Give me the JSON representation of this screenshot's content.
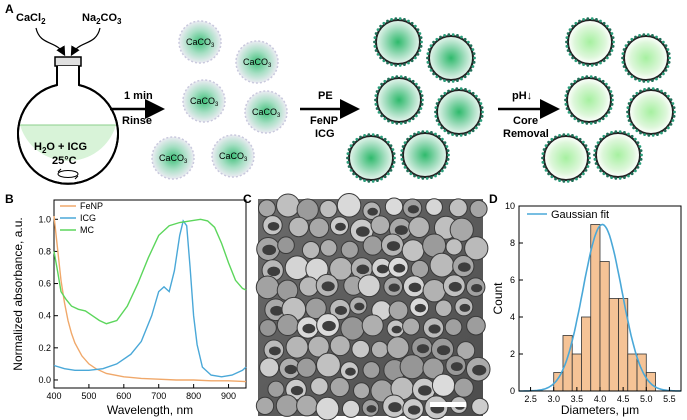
{
  "panels": {
    "A": "A",
    "B": "B",
    "C": "C",
    "D": "D"
  },
  "schematic": {
    "reagent_left": "CaCl",
    "reagent_left_sub": "2",
    "reagent_right": "Na",
    "reagent_right_sub1": "2",
    "reagent_right_mid": "CO",
    "reagent_right_sub2": "3",
    "flask_line1_a": "H",
    "flask_line1_sub": "2",
    "flask_line1_b": "O + ICG",
    "flask_line2": "25°C",
    "particle_label": "CaCO",
    "particle_label_sub": "3",
    "step1_top": "1 min",
    "step1_bottom": "Rinse",
    "step2_top": "PE",
    "step2_mid": "FeNP",
    "step2_bottom": "ICG",
    "step3_top": "pH↓",
    "step3_mid": "Core",
    "step3_bottom": "Removal"
  },
  "chart_data": [
    {
      "type": "line",
      "panel": "B",
      "xlabel": "Wavelength, nm",
      "ylabel": "Normalized absorbance, a.u.",
      "xlim": [
        400,
        950
      ],
      "ylim": [
        -0.05,
        1.12
      ],
      "xticks": [
        "400",
        "500",
        "600",
        "700",
        "800",
        "900"
      ],
      "yticks": [
        "0.0",
        "0.2",
        "0.4",
        "0.6",
        "0.8",
        "1.0"
      ],
      "legend_position": "top-left",
      "series": [
        {
          "name": "FeNP",
          "color": "#f0a86a",
          "x": [
            400,
            410,
            420,
            430,
            440,
            450,
            460,
            480,
            500,
            520,
            550,
            600,
            650,
            700,
            750,
            800,
            850,
            900,
            950
          ],
          "y": [
            1.02,
            0.82,
            0.62,
            0.48,
            0.37,
            0.29,
            0.23,
            0.15,
            0.1,
            0.07,
            0.04,
            0.02,
            0.01,
            0.005,
            0.0,
            0.0,
            -0.005,
            -0.005,
            -0.01
          ]
        },
        {
          "name": "ICG",
          "color": "#4aa8d8",
          "x": [
            400,
            430,
            460,
            500,
            540,
            580,
            620,
            650,
            680,
            700,
            715,
            730,
            745,
            760,
            770,
            780,
            790,
            800,
            810,
            825,
            850,
            880,
            910,
            940,
            950
          ],
          "y": [
            0.09,
            0.07,
            0.06,
            0.06,
            0.07,
            0.1,
            0.16,
            0.24,
            0.4,
            0.55,
            0.58,
            0.55,
            0.68,
            0.9,
            0.99,
            0.96,
            0.7,
            0.4,
            0.22,
            0.08,
            0.03,
            0.02,
            0.03,
            0.06,
            0.08
          ]
        },
        {
          "name": "MC",
          "color": "#5cd65c",
          "x": [
            400,
            410,
            420,
            435,
            450,
            470,
            490,
            510,
            530,
            550,
            580,
            610,
            640,
            670,
            700,
            730,
            760,
            790,
            820,
            840,
            860,
            880,
            900,
            920,
            940,
            950
          ],
          "y": [
            0.8,
            0.68,
            0.55,
            0.5,
            0.46,
            0.44,
            0.43,
            0.4,
            0.37,
            0.35,
            0.37,
            0.46,
            0.6,
            0.76,
            0.9,
            0.96,
            0.98,
            0.99,
            1.0,
            0.99,
            0.95,
            0.85,
            0.73,
            0.62,
            0.57,
            0.56
          ]
        }
      ]
    },
    {
      "type": "bar",
      "panel": "D",
      "xlabel": "Diameters, μm",
      "ylabel": "Count",
      "xlim": [
        2.25,
        5.75
      ],
      "ylim": [
        0,
        10
      ],
      "xticks": [
        "2.5",
        "3.0",
        "3.5",
        "4.0",
        "4.5",
        "5.0",
        "5.5"
      ],
      "yticks": [
        "0",
        "2",
        "4",
        "6",
        "8",
        "10"
      ],
      "bin_width": 0.2,
      "bins": [
        {
          "start": 3.0,
          "count": 1
        },
        {
          "start": 3.2,
          "count": 3
        },
        {
          "start": 3.4,
          "count": 2
        },
        {
          "start": 3.6,
          "count": 4
        },
        {
          "start": 3.8,
          "count": 9
        },
        {
          "start": 4.0,
          "count": 7
        },
        {
          "start": 4.2,
          "count": 5
        },
        {
          "start": 4.4,
          "count": 5
        },
        {
          "start": 4.6,
          "count": 2
        },
        {
          "start": 4.8,
          "count": 2
        },
        {
          "start": 5.0,
          "count": 1
        }
      ],
      "fit": {
        "name": "Gaussian fit",
        "color": "#4aa8d8",
        "amplitude": 9.0,
        "mean": 4.05,
        "sigma": 0.42
      }
    }
  ],
  "colors": {
    "bar_fill": "#f5c396",
    "bar_edge": "#333333",
    "flask_liquid": "#d8f3d8",
    "shell_dot": "#2a9d7a"
  }
}
